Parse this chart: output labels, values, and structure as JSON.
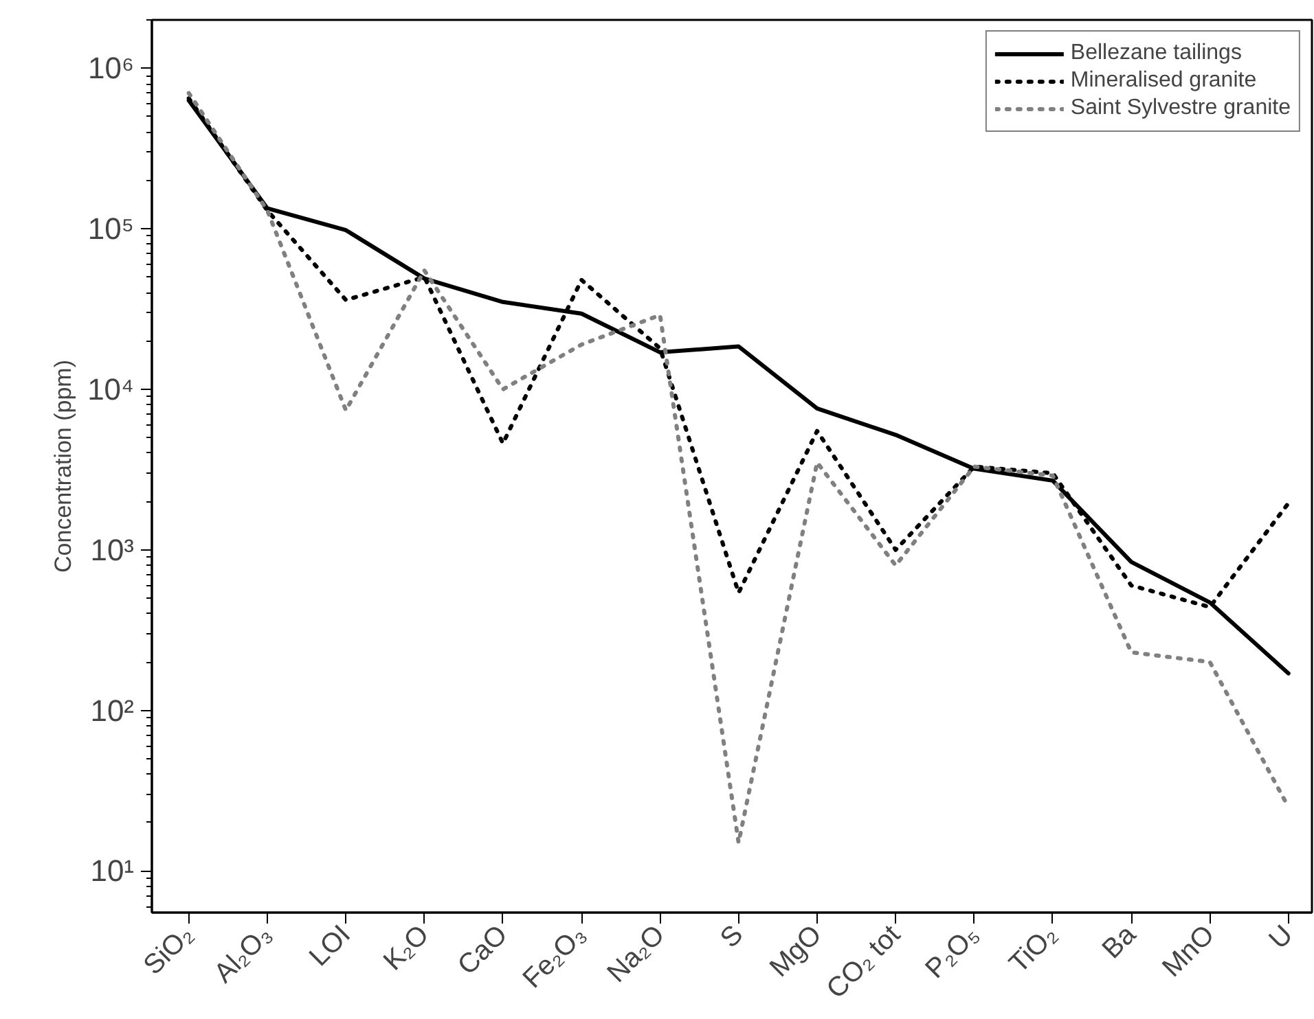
{
  "chart_data": {
    "type": "line",
    "ylabel": "Concentration (ppm)",
    "categories": [
      "SiO₂",
      "Al₂O₃",
      "LOI",
      "K₂O",
      "CaO",
      "Fe₂O₃",
      "Na₂O",
      "S",
      "MgO",
      "CO₂ tot",
      "P₂O₅",
      "TiO₂",
      "Ba",
      "MnO",
      "U"
    ],
    "series": [
      {
        "name": "Bellezane tailings",
        "color": "#000000",
        "line_style": "solid",
        "values": [
          630000,
          134000,
          98000,
          49000,
          35000,
          29600,
          17000,
          18500,
          7600,
          5200,
          3200,
          2700,
          840,
          470,
          170
        ]
      },
      {
        "name": "Mineralised granite",
        "color": "#000000",
        "line_style": "dotted",
        "values": [
          650000,
          130000,
          36000,
          50000,
          4600,
          48000,
          18000,
          540,
          5500,
          1000,
          3300,
          3000,
          600,
          440,
          1950
        ]
      },
      {
        "name": "Saint Sylvestre granite",
        "color": "#808080",
        "line_style": "dotted",
        "values": [
          700000,
          130000,
          7400,
          55000,
          10000,
          19000,
          29000,
          15,
          3500,
          800,
          3300,
          2900,
          230,
          200,
          25
        ]
      }
    ],
    "log": "y",
    "ylim": [
      5.5,
      2000000
    ],
    "yticks": [
      {
        "value": 10,
        "label": "10¹"
      },
      {
        "value": 100,
        "label": "10²"
      },
      {
        "value": 1000,
        "label": "10³"
      },
      {
        "value": 10000,
        "label": "10⁴"
      },
      {
        "value": 100000,
        "label": "10⁵"
      },
      {
        "value": 1000000,
        "label": "10⁶"
      }
    ],
    "legend": "top right",
    "grid": false,
    "marker": "none"
  }
}
